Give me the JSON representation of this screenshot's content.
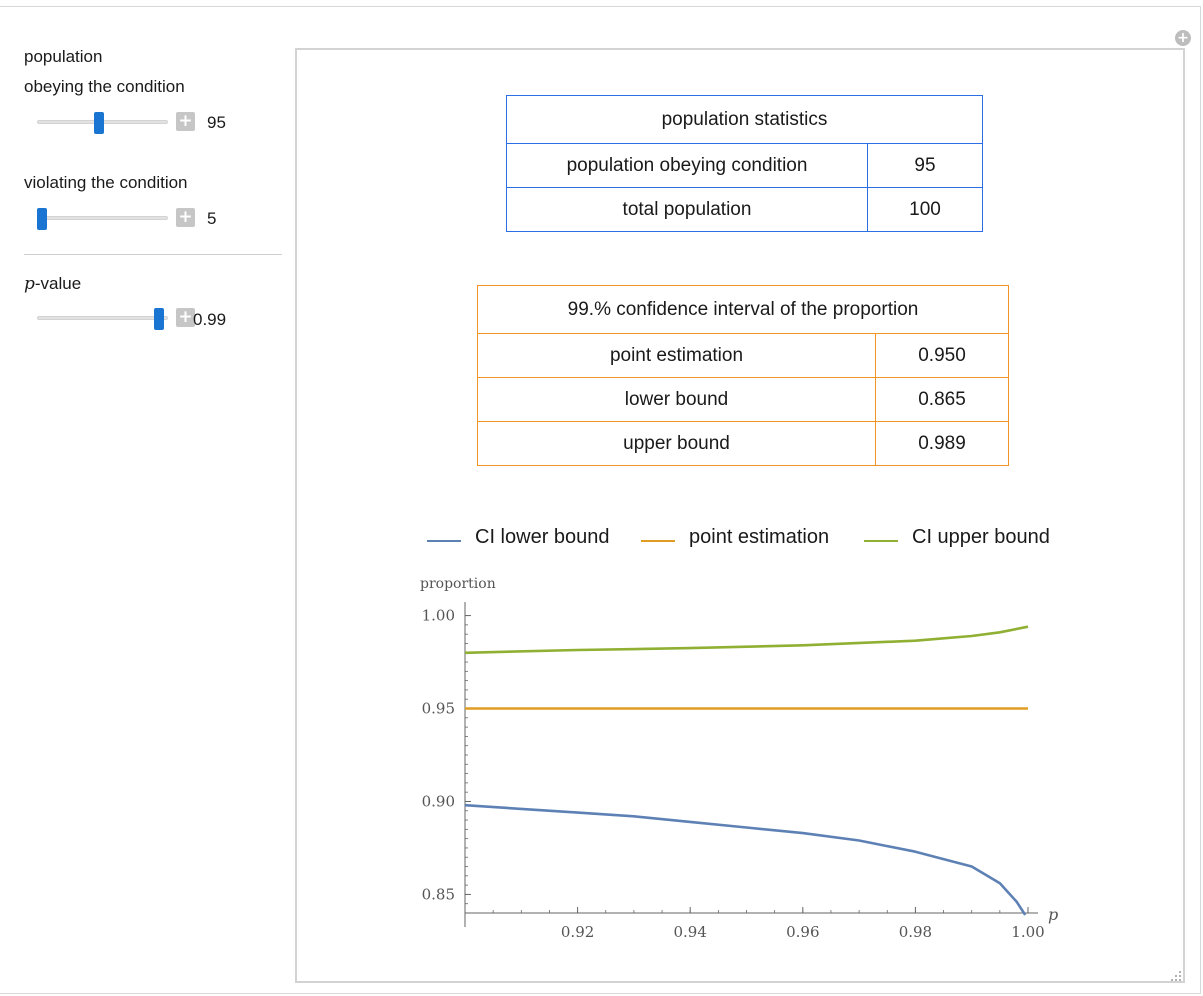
{
  "controls": {
    "obeying": {
      "label_line1": "population",
      "label_line2": "obeying the condition",
      "value": "95",
      "fraction": 0.47
    },
    "violating": {
      "label": "violating the condition",
      "value": "5",
      "fraction": 0.0
    },
    "pvalue": {
      "label_p": "p",
      "label_rest": "-value",
      "value": "0.99",
      "fraction": 0.97
    },
    "plus_symbol": "+"
  },
  "population_table": {
    "header": "population statistics",
    "rows": [
      {
        "label": "population obeying condition",
        "value": "95"
      },
      {
        "label": "total population",
        "value": "100"
      }
    ]
  },
  "ci_table": {
    "header": "99.% confidence interval of the proportion",
    "rows": [
      {
        "label": "point estimation",
        "value": "0.950"
      },
      {
        "label": "lower bound",
        "value": "0.865"
      },
      {
        "label": "upper bound",
        "value": "0.989"
      }
    ]
  },
  "legend": [
    {
      "label": "CI lower bound",
      "color": "#5e81b5"
    },
    {
      "label": "point estimation",
      "color": "#e19c24"
    },
    {
      "label": "CI upper bound",
      "color": "#8fb032"
    }
  ],
  "colors": {
    "blue_table": "#2b6fe6",
    "orange_table": "#f29423",
    "slider_thumb": "#1a75d2"
  },
  "chart_data": {
    "type": "line",
    "ylabel": "proportion",
    "xlabel": "p",
    "xlim": [
      0.9,
      1.0
    ],
    "ylim": [
      0.84,
      1.003
    ],
    "xticks": [
      "0.92",
      "0.94",
      "0.96",
      "0.98",
      "1.00"
    ],
    "yticks": [
      "0.85",
      "0.90",
      "0.95",
      "1.00"
    ],
    "grid": false,
    "series": [
      {
        "name": "CI lower bound",
        "color": "#5e81b5",
        "points": [
          [
            0.9,
            0.898
          ],
          [
            0.91,
            0.896
          ],
          [
            0.92,
            0.894
          ],
          [
            0.93,
            0.892
          ],
          [
            0.94,
            0.889
          ],
          [
            0.95,
            0.886
          ],
          [
            0.96,
            0.883
          ],
          [
            0.97,
            0.879
          ],
          [
            0.98,
            0.873
          ],
          [
            0.985,
            0.869
          ],
          [
            0.99,
            0.865
          ],
          [
            0.995,
            0.856
          ],
          [
            0.998,
            0.846
          ],
          [
            0.9995,
            0.839
          ]
        ]
      },
      {
        "name": "point estimation",
        "color": "#e19c24",
        "points": [
          [
            0.9,
            0.95
          ],
          [
            1.0,
            0.95
          ]
        ]
      },
      {
        "name": "CI upper bound",
        "color": "#8fb032",
        "points": [
          [
            0.9,
            0.98
          ],
          [
            0.92,
            0.9815
          ],
          [
            0.94,
            0.9825
          ],
          [
            0.96,
            0.984
          ],
          [
            0.98,
            0.9865
          ],
          [
            0.99,
            0.989
          ],
          [
            0.995,
            0.991
          ],
          [
            1.0,
            0.994
          ]
        ]
      }
    ]
  }
}
